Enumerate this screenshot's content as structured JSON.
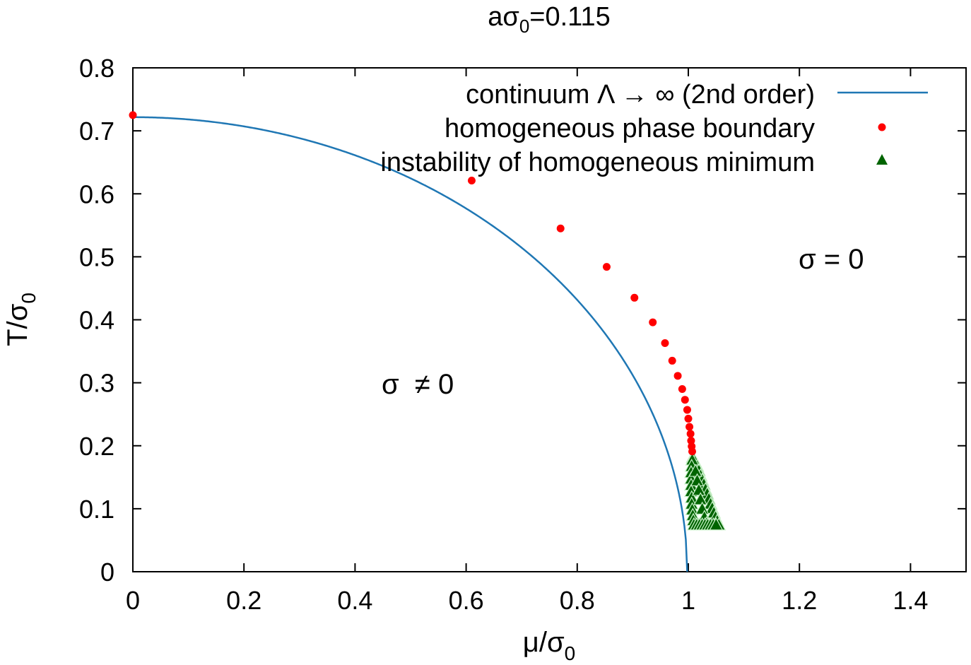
{
  "chart_data": {
    "type": "scatter",
    "title": "aσ0=0.115",
    "title_parts": {
      "base": "aσ",
      "sub": "0",
      "rest": "=0.115"
    },
    "xlabel": "μ/σ0",
    "xlabel_parts": {
      "base": "μ/σ",
      "sub": "0"
    },
    "ylabel": "T/σ0",
    "ylabel_parts": {
      "base": "T/σ",
      "sub": "0"
    },
    "xlim": [
      0,
      1.5
    ],
    "ylim": [
      0,
      0.8
    ],
    "x_ticks": [
      0,
      0.2,
      0.4,
      0.6,
      0.8,
      1.0,
      1.2,
      1.4
    ],
    "x_tick_labels": [
      "0",
      "0.2",
      "0.4",
      "0.6",
      "0.8",
      "1",
      "1.2",
      "1.4"
    ],
    "y_ticks": [
      0,
      0.1,
      0.2,
      0.3,
      0.4,
      0.5,
      0.6,
      0.7,
      0.8
    ],
    "y_tick_labels": [
      "0",
      "0.1",
      "0.2",
      "0.3",
      "0.4",
      "0.5",
      "0.6",
      "0.7",
      "0.8"
    ],
    "grid": false,
    "legend_position": "top-right",
    "annotations": [
      {
        "text": "σ = 0",
        "x": 1.21,
        "y": 0.49
      },
      {
        "text": "σ  ≠ 0",
        "x": 0.45,
        "y": 0.29
      }
    ],
    "series": [
      {
        "name": "continuum Λ → ∞ (2nd order)",
        "kind": "line",
        "color": "#1f77b4",
        "Tc0": 0.7217,
        "mu_c": 0.998
      },
      {
        "name": "homogeneous phase boundary",
        "kind": "points",
        "marker": "circle",
        "color": "#ff0000",
        "points": [
          [
            0.0,
            0.725
          ],
          [
            0.61,
            0.621
          ],
          [
            0.77,
            0.545
          ],
          [
            0.853,
            0.484
          ],
          [
            0.903,
            0.435
          ],
          [
            0.936,
            0.396
          ],
          [
            0.958,
            0.363
          ],
          [
            0.971,
            0.335
          ],
          [
            0.981,
            0.311
          ],
          [
            0.989,
            0.29
          ],
          [
            0.994,
            0.273
          ],
          [
            0.998,
            0.257
          ],
          [
            1.0,
            0.243
          ],
          [
            1.002,
            0.23
          ],
          [
            1.004,
            0.219
          ],
          [
            1.005,
            0.208
          ],
          [
            1.006,
            0.199
          ],
          [
            1.007,
            0.191
          ]
        ]
      },
      {
        "name": "instability of homogeneous minimum",
        "kind": "points",
        "marker": "triangle",
        "color": "#006400",
        "fill_color": "#c8f0c8",
        "branches": {
          "upper": [
            [
              1.008,
              0.182
            ],
            [
              1.012,
              0.175
            ],
            [
              1.016,
              0.168
            ],
            [
              1.019,
              0.161
            ],
            [
              1.022,
              0.153
            ],
            [
              1.025,
              0.146
            ],
            [
              1.028,
              0.139
            ],
            [
              1.031,
              0.131
            ],
            [
              1.034,
              0.124
            ],
            [
              1.037,
              0.116
            ],
            [
              1.04,
              0.108
            ],
            [
              1.043,
              0.101
            ],
            [
              1.046,
              0.094
            ],
            [
              1.049,
              0.087
            ],
            [
              1.052,
              0.081
            ],
            [
              1.055,
              0.075
            ]
          ],
          "lower": [
            [
              1.007,
              0.178
            ],
            [
              1.006,
              0.168
            ],
            [
              1.005,
              0.158
            ],
            [
              1.005,
              0.148
            ],
            [
              1.005,
              0.138
            ],
            [
              1.005,
              0.128
            ],
            [
              1.006,
              0.118
            ],
            [
              1.006,
              0.108
            ],
            [
              1.007,
              0.099
            ],
            [
              1.008,
              0.09
            ],
            [
              1.009,
              0.082
            ],
            [
              1.01,
              0.075
            ]
          ],
          "middle": [
            [
              1.013,
              0.16
            ],
            [
              1.016,
              0.145
            ],
            [
              1.019,
              0.13
            ],
            [
              1.022,
              0.115
            ],
            [
              1.025,
              0.1
            ],
            [
              1.029,
              0.087
            ],
            [
              1.033,
              0.077
            ]
          ],
          "bottom": [
            [
              1.015,
              0.075
            ],
            [
              1.02,
              0.075
            ],
            [
              1.025,
              0.075
            ],
            [
              1.03,
              0.075
            ],
            [
              1.035,
              0.075
            ],
            [
              1.04,
              0.075
            ],
            [
              1.045,
              0.075
            ],
            [
              1.05,
              0.075
            ]
          ]
        }
      }
    ]
  }
}
